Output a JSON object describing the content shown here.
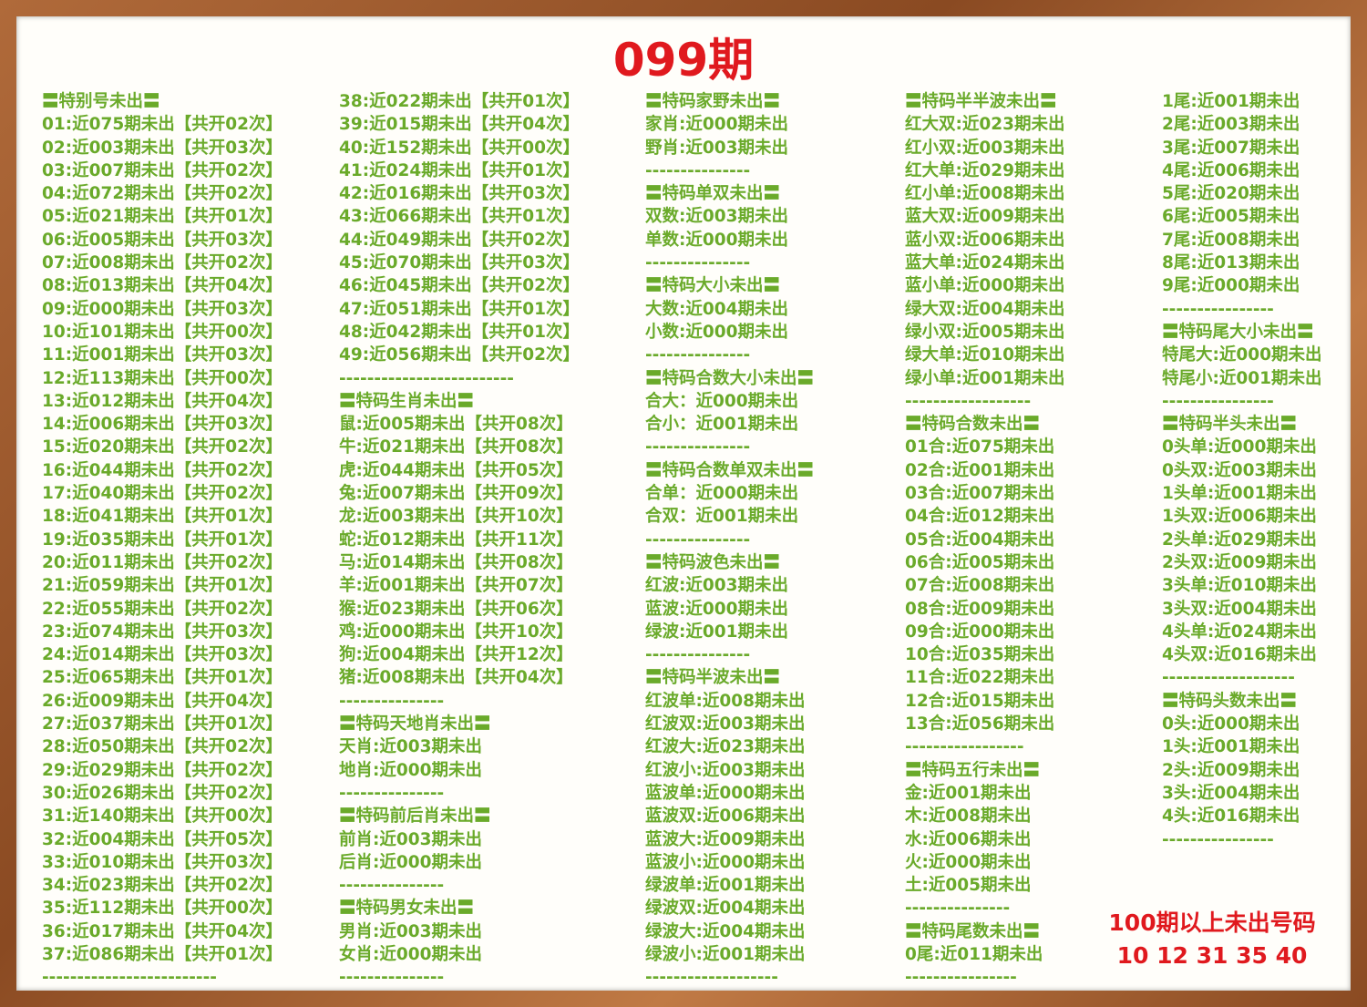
{
  "title": "099期",
  "columns": [
    [
      "〓特别号未出〓",
      "01:近075期未出【共开02次】",
      "02:近003期未出【共开03次】",
      "03:近007期未出【共开02次】",
      "04:近072期未出【共开02次】",
      "05:近021期未出【共开01次】",
      "06:近005期未出【共开03次】",
      "07:近008期未出【共开02次】",
      "08:近013期未出【共开04次】",
      "09:近000期未出【共开03次】",
      "10:近101期未出【共开00次】",
      "11:近001期未出【共开03次】",
      "12:近113期未出【共开00次】",
      "13:近012期未出【共开04次】",
      "14:近006期未出【共开03次】",
      "15:近020期未出【共开02次】",
      "16:近044期未出【共开02次】",
      "17:近040期未出【共开02次】",
      "18:近041期未出【共开01次】",
      "19:近035期未出【共开01次】",
      "20:近011期未出【共开02次】",
      "21:近059期未出【共开01次】",
      "22:近055期未出【共开02次】",
      "23:近074期未出【共开03次】",
      "24:近014期未出【共开03次】",
      "25:近065期未出【共开01次】",
      "26:近009期未出【共开04次】",
      "27:近037期未出【共开01次】",
      "28:近050期未出【共开02次】",
      "29:近029期未出【共开02次】",
      "30:近026期未出【共开02次】",
      "31:近140期未出【共开00次】",
      "32:近004期未出【共开05次】",
      "33:近010期未出【共开03次】",
      "34:近023期未出【共开02次】",
      "35:近112期未出【共开00次】",
      "36:近017期未出【共开04次】",
      "37:近086期未出【共开01次】",
      "-------------------------"
    ],
    [
      "38:近022期未出【共开01次】",
      "39:近015期未出【共开04次】",
      "40:近152期未出【共开00次】",
      "41:近024期未出【共开01次】",
      "42:近016期未出【共开03次】",
      "43:近066期未出【共开01次】",
      "44:近049期未出【共开02次】",
      "45:近070期未出【共开03次】",
      "46:近045期未出【共开02次】",
      "47:近051期未出【共开01次】",
      "48:近042期未出【共开01次】",
      "49:近056期未出【共开02次】",
      "-------------------------",
      "〓特码生肖未出〓",
      "鼠:近005期未出【共开08次】",
      "牛:近021期未出【共开08次】",
      "虎:近044期未出【共开05次】",
      "兔:近007期未出【共开09次】",
      "龙:近003期未出【共开10次】",
      "蛇:近012期未出【共开11次】",
      "马:近014期未出【共开08次】",
      "羊:近001期未出【共开07次】",
      "猴:近023期未出【共开06次】",
      "鸡:近000期未出【共开10次】",
      "狗:近004期未出【共开12次】",
      "猪:近008期未出【共开04次】",
      "---------------",
      "〓特码天地肖未出〓",
      "天肖:近003期未出",
      "地肖:近000期未出",
      "---------------",
      "〓特码前后肖未出〓",
      "前肖:近003期未出",
      "后肖:近000期未出",
      "---------------",
      "〓特码男女未出〓",
      "男肖:近003期未出",
      "女肖:近000期未出",
      "---------------"
    ],
    [
      "〓特码家野未出〓",
      "家肖:近000期未出",
      "野肖:近003期未出",
      "---------------",
      "〓特码单双未出〓",
      "双数:近003期未出",
      "单数:近000期未出",
      "---------------",
      "〓特码大小未出〓",
      "大数:近004期未出",
      "小数:近000期未出",
      "---------------",
      "〓特码合数大小未出〓",
      "合大：近000期未出",
      "合小：近001期未出",
      "---------------",
      "〓特码合数单双未出〓",
      "合单：近000期未出",
      "合双：近001期未出",
      "---------------",
      "〓特码波色未出〓",
      "红波:近003期未出",
      "蓝波:近000期未出",
      "绿波:近001期未出",
      "---------------",
      "〓特码半波未出〓",
      "红波单:近008期未出",
      "红波双:近003期未出",
      "红波大:近023期未出",
      "红波小:近003期未出",
      "蓝波单:近000期未出",
      "蓝波双:近006期未出",
      "蓝波大:近009期未出",
      "蓝波小:近000期未出",
      "绿波单:近001期未出",
      "绿波双:近004期未出",
      "绿波大:近004期未出",
      "绿波小:近001期未出",
      "-------------------"
    ],
    [
      "〓特码半半波未出〓",
      "红大双:近023期未出",
      "红小双:近003期未出",
      "红大单:近029期未出",
      "红小单:近008期未出",
      "蓝大双:近009期未出",
      "蓝小双:近006期未出",
      "蓝大单:近024期未出",
      "蓝小单:近000期未出",
      "绿大双:近004期未出",
      "绿小双:近005期未出",
      "绿大单:近010期未出",
      "绿小单:近001期未出",
      "------------------",
      "〓特码合数未出〓",
      "01合:近075期未出",
      "02合:近001期未出",
      "03合:近007期未出",
      "04合:近012期未出",
      "05合:近004期未出",
      "06合:近005期未出",
      "07合:近008期未出",
      "08合:近009期未出",
      "09合:近000期未出",
      "10合:近035期未出",
      "11合:近022期未出",
      "12合:近015期未出",
      "13合:近056期未出",
      "-----------------",
      "〓特码五行未出〓",
      "金:近001期未出",
      "木:近008期未出",
      "水:近006期未出",
      "火:近000期未出",
      "土:近005期未出",
      "---------------",
      "〓特码尾数未出〓",
      "0尾:近011期未出",
      "----------------"
    ],
    [
      "1尾:近001期未出",
      "2尾:近003期未出",
      "3尾:近007期未出",
      "4尾:近006期未出",
      "5尾:近020期未出",
      "6尾:近005期未出",
      "7尾:近008期未出",
      "8尾:近013期未出",
      "9尾:近000期未出",
      "----------------",
      "〓特码尾大小未出〓",
      "特尾大:近000期未出",
      "特尾小:近001期未出",
      "----------------",
      "〓特码半头未出〓",
      "0头单:近000期未出",
      "0头双:近003期未出",
      "1头单:近001期未出",
      "1头双:近006期未出",
      "2头单:近029期未出",
      "2头双:近009期未出",
      "3头单:近010期未出",
      "3头双:近004期未出",
      "4头单:近024期未出",
      "4头双:近016期未出",
      "-------------------",
      "〓特码头数未出〓",
      "0头:近000期未出",
      "1头:近001期未出",
      "2头:近009期未出",
      "3头:近004期未出",
      "4头:近016期未出",
      "----------------"
    ]
  ],
  "note": {
    "heading": "100期以上未出号码",
    "numbers": "10 12 31 35 40"
  }
}
